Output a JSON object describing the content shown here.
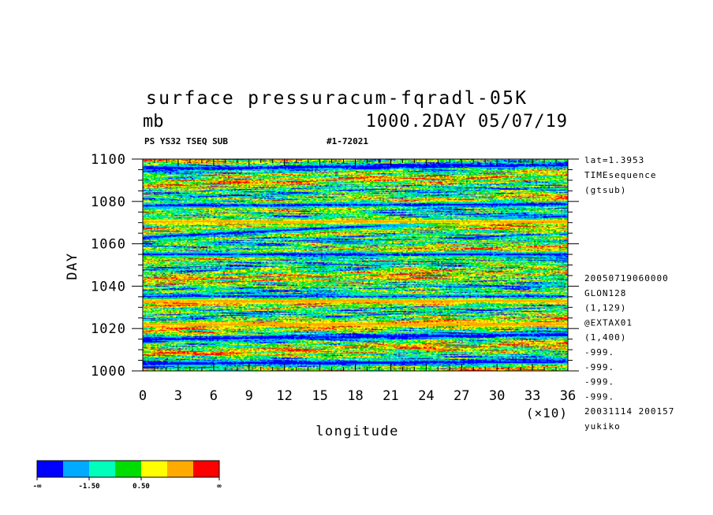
{
  "chart_data": {
    "type": "heatmap",
    "title_line1": "surface pressuracum-fqradl-05K",
    "title_line2_left": "mb",
    "title_line2_right": "1000.2DAY 05/07/19",
    "subtitle_left": "PS YS32 TSEQ SUB",
    "subtitle_right": "#1-72021",
    "xlabel": "longitude",
    "ylabel": "DAY",
    "x_multiplier_label": "(×10)",
    "xlim": [
      0,
      36
    ],
    "ylim": [
      1000,
      1100
    ],
    "x_ticks": [
      "0",
      "3",
      "6",
      "9",
      "12",
      "15",
      "18",
      "21",
      "24",
      "27",
      "30",
      "33",
      "36"
    ],
    "y_ticks": [
      "1000",
      "1020",
      "1040",
      "1060",
      "1080",
      "1100"
    ],
    "side_info_top": [
      "lat=1.3953",
      "TIMEsequence",
      "(gtsub)"
    ],
    "side_info_bottom": [
      "20050719060000",
      "GLON128",
      "(1,129)",
      "@EXTAX01",
      "(1,400)",
      "-999.",
      "-999.",
      "-999.",
      "-999.",
      "20031114 200157",
      "yukiko"
    ],
    "colorbar": {
      "colors": [
        "#0000ff",
        "#00aaff",
        "#00ffbb",
        "#00dd00",
        "#ffff00",
        "#ffaa00",
        "#ff0000"
      ],
      "labels": [
        "-∞",
        "-1.50",
        "0.50",
        "∞"
      ]
    },
    "streak_features": [
      {
        "day_at_x0": 1095.5,
        "slope_per_x": 0.05,
        "value": -3
      },
      {
        "day_at_x0": 1078,
        "slope_per_x": 0.02,
        "value": -3
      },
      {
        "day_at_x0": 1063,
        "slope_per_x": 0.28,
        "value": -3
      },
      {
        "day_at_x0": 1070.5,
        "slope_per_x": 0.0,
        "value": 2
      },
      {
        "day_at_x0": 1055,
        "slope_per_x": 0.0,
        "value": -3
      },
      {
        "day_at_x0": 1035,
        "slope_per_x": 0.0,
        "value": -3
      },
      {
        "day_at_x0": 1033,
        "slope_per_x": 0.0,
        "value": 2
      },
      {
        "day_at_x0": 1022,
        "slope_per_x": 0.0,
        "value": 2
      },
      {
        "day_at_x0": 1015,
        "slope_per_x": 0.06,
        "value": -3
      },
      {
        "day_at_x0": 1003.5,
        "slope_per_x": 0.02,
        "value": -3
      }
    ]
  }
}
